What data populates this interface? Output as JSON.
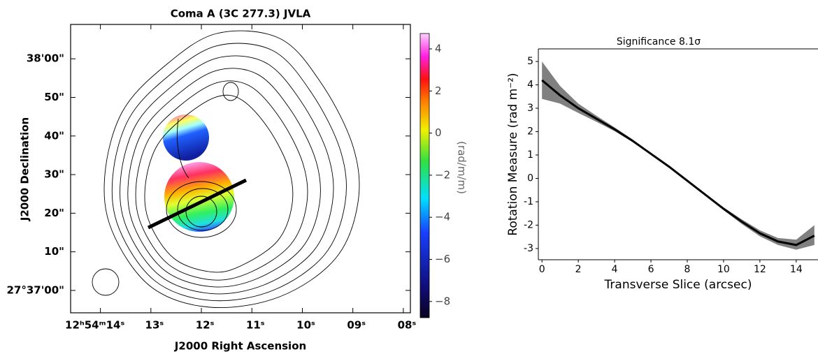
{
  "chart_data": [
    {
      "type": "image",
      "title": "Coma A (3C 277.3) JVLA",
      "xlabel": "J2000 Right Ascension",
      "ylabel": "J2000 Declination",
      "xlim": [
        14.59,
        7.86
      ],
      "xticks": [
        {
          "value": 14,
          "label": "12ʰ54ᵐ14ˢ"
        },
        {
          "value": 13,
          "label": "13ˢ"
        },
        {
          "value": 12,
          "label": "12ˢ"
        },
        {
          "value": 11,
          "label": "11ˢ"
        },
        {
          "value": 10,
          "label": "10ˢ"
        },
        {
          "value": 9,
          "label": "09ˢ"
        },
        {
          "value": 8,
          "label": "08ˢ"
        }
      ],
      "ylim": [
        -5.8,
        68.9
      ],
      "yticks": [
        {
          "value": 0,
          "label": "27°37'00\""
        },
        {
          "value": 10,
          "label": "10\""
        },
        {
          "value": 20,
          "label": "20\""
        },
        {
          "value": 30,
          "label": "30\""
        },
        {
          "value": 40,
          "label": "40\""
        },
        {
          "value": 50,
          "label": "50\""
        },
        {
          "value": 60,
          "label": "38'00\""
        }
      ],
      "colorbar": {
        "label": "(rad/m/m)",
        "lim": [
          -8.77,
          4.73
        ],
        "ticks": [
          {
            "value": -8,
            "label": "−8"
          },
          {
            "value": -6,
            "label": "−6"
          },
          {
            "value": -4,
            "label": "−4"
          },
          {
            "value": -2,
            "label": "−2"
          },
          0,
          2,
          4
        ]
      }
    },
    {
      "type": "line",
      "title": "Significance 8.1σ",
      "xlabel": "Transverse Slice (arcsec)",
      "ylabel": "Rotation Measure (rad m⁻²)",
      "xlim": [
        -0.2,
        15.2
      ],
      "xticks": [
        0,
        2,
        4,
        6,
        8,
        10,
        12,
        14
      ],
      "ylim": [
        -3.48,
        5.54
      ],
      "yticks": [
        -3,
        -2,
        -1,
        0,
        1,
        2,
        3,
        4,
        5
      ],
      "x": [
        0,
        1,
        2,
        3,
        4,
        5,
        6,
        7,
        8,
        9,
        10,
        11,
        12,
        13,
        14,
        15
      ],
      "series": [
        {
          "color": "#000000",
          "band_color": "#808080",
          "values": [
            4.2,
            3.55,
            3.0,
            2.55,
            2.1,
            1.6,
            1.05,
            0.5,
            -0.1,
            -0.7,
            -1.3,
            -1.85,
            -2.35,
            -2.7,
            -2.85,
            -2.45
          ],
          "lower": [
            3.4,
            3.2,
            2.8,
            2.42,
            2.02,
            1.55,
            1.02,
            0.48,
            -0.12,
            -0.73,
            -1.36,
            -1.95,
            -2.48,
            -2.85,
            -3.05,
            -2.85
          ],
          "upper": [
            5.0,
            3.95,
            3.2,
            2.68,
            2.18,
            1.66,
            1.08,
            0.52,
            -0.08,
            -0.67,
            -1.24,
            -1.75,
            -2.22,
            -2.55,
            -2.62,
            -2.0
          ]
        }
      ]
    }
  ]
}
